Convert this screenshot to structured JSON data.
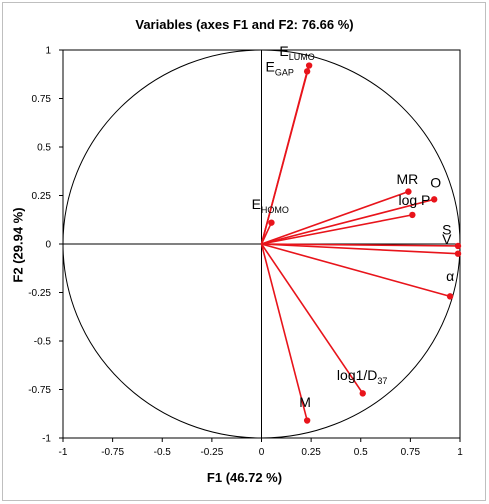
{
  "chart_data": {
    "type": "scatter",
    "subtype": "correlation-circle",
    "title": "Variables (axes F1 and F2: 76.66 %)",
    "xlabel": "F1 (46.72 %)",
    "ylabel": "F2 (29.94 %)",
    "xlim": [
      -1,
      1
    ],
    "ylim": [
      -1,
      1
    ],
    "xticks": [
      "-1",
      "-0.75",
      "-0.5",
      "-0.25",
      "0",
      "0.25",
      "0.5",
      "0.75",
      "1"
    ],
    "yticks": [
      "1",
      "0.75",
      "0.5",
      "0.25",
      "0",
      "-0.25",
      "-0.5",
      "-0.75",
      "-1"
    ],
    "grid": false,
    "unit_circle": true,
    "vector_color": "#e8141b",
    "points": [
      {
        "label": "E",
        "sub": "LUMO",
        "x": 0.24,
        "y": 0.92,
        "lx": 0.09,
        "ly": 0.97
      },
      {
        "label": "E",
        "sub": "GAP",
        "x": 0.23,
        "y": 0.89,
        "lx": 0.02,
        "ly": 0.89
      },
      {
        "label": "E",
        "sub": "HOMO",
        "x": 0.05,
        "y": 0.11,
        "lx": -0.05,
        "ly": 0.18
      },
      {
        "label": "MR",
        "sub": "",
        "x": 0.74,
        "y": 0.27,
        "lx": 0.68,
        "ly": 0.31
      },
      {
        "label": "O",
        "sub": "",
        "x": 0.87,
        "y": 0.23,
        "lx": 0.85,
        "ly": 0.29
      },
      {
        "label": "log P",
        "sub": "",
        "x": 0.76,
        "y": 0.15,
        "lx": 0.69,
        "ly": 0.2
      },
      {
        "label": "S",
        "sub": "",
        "x": 0.99,
        "y": -0.01,
        "lx": 0.91,
        "ly": 0.05
      },
      {
        "label": "V",
        "sub": "",
        "x": 0.99,
        "y": -0.05,
        "lx": 0.91,
        "ly": 0.0
      },
      {
        "label": "α",
        "sub": "",
        "x": 0.95,
        "y": -0.27,
        "lx": 0.93,
        "ly": -0.19
      },
      {
        "label": "log1/D",
        "sub": "37",
        "x": 0.51,
        "y": -0.77,
        "lx": 0.38,
        "ly": -0.7
      },
      {
        "label": "M",
        "sub": "",
        "x": 0.23,
        "y": -0.91,
        "lx": 0.19,
        "ly": -0.84
      }
    ]
  }
}
